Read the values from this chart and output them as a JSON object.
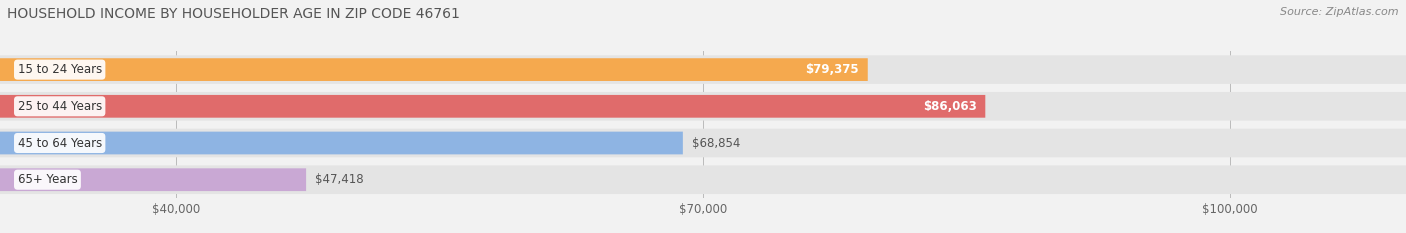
{
  "title": "HOUSEHOLD INCOME BY HOUSEHOLDER AGE IN ZIP CODE 46761",
  "source": "Source: ZipAtlas.com",
  "categories": [
    "15 to 24 Years",
    "25 to 44 Years",
    "45 to 64 Years",
    "65+ Years"
  ],
  "values": [
    79375,
    86063,
    68854,
    47418
  ],
  "labels": [
    "$79,375",
    "$86,063",
    "$68,854",
    "$47,418"
  ],
  "bar_colors": [
    "#F5A94E",
    "#E06B6B",
    "#8EB4E3",
    "#C9A8D4"
  ],
  "label_inside": [
    true,
    true,
    false,
    false
  ],
  "background_color": "#F2F2F2",
  "row_bg_color": "#E4E4E4",
  "xlim_min": 30000,
  "xlim_max": 110000,
  "xticks": [
    40000,
    70000,
    100000
  ],
  "xticklabels": [
    "$40,000",
    "$70,000",
    "$100,000"
  ],
  "title_fontsize": 10,
  "source_fontsize": 8,
  "label_fontsize": 8.5,
  "cat_fontsize": 8.5
}
